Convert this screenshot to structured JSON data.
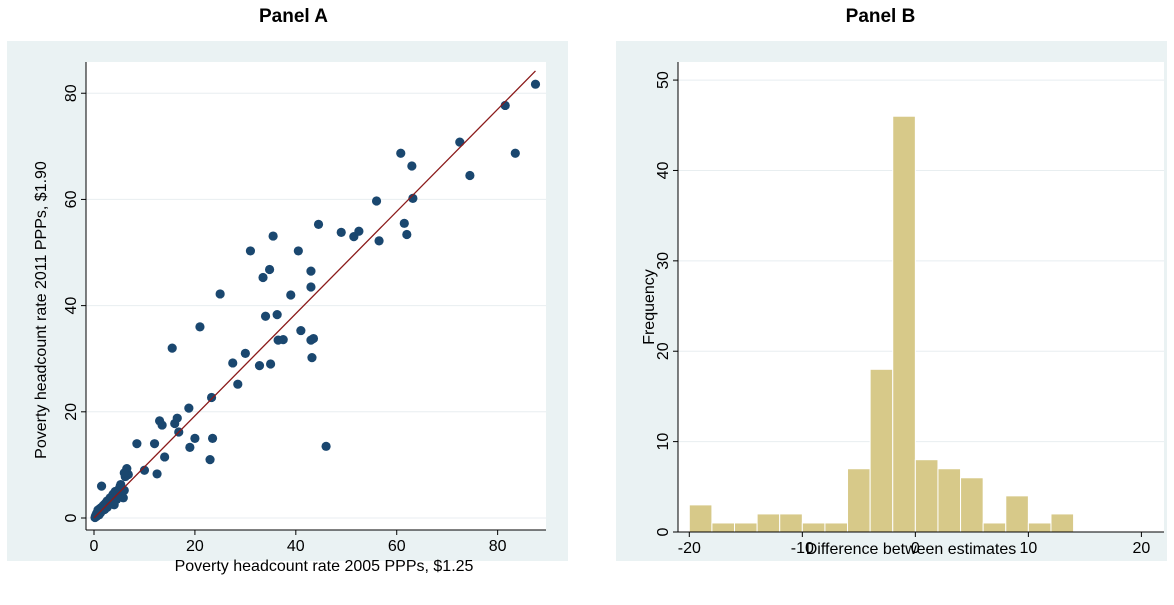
{
  "panels": {
    "a_title": "Panel A",
    "b_title": "Panel B"
  },
  "colors": {
    "background": "#eaf2f3",
    "point": "#1a476f",
    "fit_line": "#8b1a1a",
    "bar_fill": "#d7c989",
    "bar_edge": "#ffffff",
    "grid": "#ffffff"
  },
  "chart_data": [
    {
      "type": "scatter",
      "title": "Panel A",
      "xlabel": "Poverty headcount rate 2005 PPPs, $1.25",
      "ylabel": "Poverty headcount rate 2011 PPPs, $1.90",
      "xlim": [
        0,
        88
      ],
      "ylim": [
        0,
        84
      ],
      "xticks": [
        0,
        20,
        40,
        60,
        80
      ],
      "yticks": [
        0,
        20,
        40,
        60,
        80
      ],
      "grid": true,
      "fit_line": {
        "x": [
          0,
          87.5
        ],
        "y": [
          0,
          84.2
        ]
      },
      "points": [
        [
          0.2,
          0.1
        ],
        [
          0.3,
          0.4
        ],
        [
          0.5,
          0.8
        ],
        [
          0.6,
          1.0
        ],
        [
          0.8,
          1.5
        ],
        [
          1.0,
          1.2
        ],
        [
          1.2,
          1.8
        ],
        [
          1.5,
          2.0
        ],
        [
          1.8,
          2.3
        ],
        [
          2.0,
          2.5
        ],
        [
          2.3,
          2.8
        ],
        [
          2.6,
          3.2
        ],
        [
          3.0,
          3.0
        ],
        [
          3.2,
          3.8
        ],
        [
          3.5,
          4.0
        ],
        [
          3.8,
          4.5
        ],
        [
          4.0,
          2.5
        ],
        [
          4.2,
          5.0
        ],
        [
          4.5,
          3.5
        ],
        [
          4.8,
          4.8
        ],
        [
          5.0,
          5.5
        ],
        [
          5.3,
          6.3
        ],
        [
          5.5,
          4.2
        ],
        [
          5.8,
          3.8
        ],
        [
          6.0,
          5.2
        ],
        [
          6.2,
          7.8
        ],
        [
          6.5,
          9.3
        ],
        [
          6.8,
          8.2
        ],
        [
          0.5,
          0.3
        ],
        [
          1.0,
          0.6
        ],
        [
          1.3,
          1.0
        ],
        [
          0.8,
          1.4
        ],
        [
          1.5,
          6.0
        ],
        [
          2.1,
          1.6
        ],
        [
          2.6,
          2.0
        ],
        [
          3.3,
          2.6
        ],
        [
          4.0,
          3.3
        ],
        [
          4.6,
          4.0
        ],
        [
          5.2,
          6.0
        ],
        [
          6.0,
          8.5
        ],
        [
          8.5,
          14.0
        ],
        [
          10.0,
          9.0
        ],
        [
          12.0,
          14.0
        ],
        [
          12.5,
          8.3
        ],
        [
          13.0,
          18.3
        ],
        [
          13.5,
          17.5
        ],
        [
          14.0,
          11.5
        ],
        [
          15.5,
          32.0
        ],
        [
          16.0,
          17.8
        ],
        [
          16.5,
          18.8
        ],
        [
          16.8,
          16.2
        ],
        [
          18.8,
          20.7
        ],
        [
          19.0,
          13.3
        ],
        [
          20.0,
          15.0
        ],
        [
          21.0,
          36.0
        ],
        [
          23.0,
          11.0
        ],
        [
          23.3,
          22.7
        ],
        [
          23.5,
          15.0
        ],
        [
          25.0,
          42.2
        ],
        [
          27.5,
          29.2
        ],
        [
          28.5,
          25.2
        ],
        [
          30.0,
          31.0
        ],
        [
          31.0,
          50.3
        ],
        [
          32.8,
          28.7
        ],
        [
          33.5,
          45.3
        ],
        [
          34.0,
          38.0
        ],
        [
          34.8,
          46.8
        ],
        [
          35.0,
          29.0
        ],
        [
          35.5,
          53.1
        ],
        [
          36.3,
          38.3
        ],
        [
          36.5,
          33.5
        ],
        [
          37.5,
          33.6
        ],
        [
          39.0,
          42.0
        ],
        [
          40.5,
          50.3
        ],
        [
          41.0,
          35.3
        ],
        [
          43.0,
          43.5
        ],
        [
          43.0,
          46.5
        ],
        [
          43.0,
          33.5
        ],
        [
          43.2,
          30.2
        ],
        [
          43.5,
          33.8
        ],
        [
          44.5,
          55.3
        ],
        [
          46.0,
          13.5
        ],
        [
          49.0,
          53.8
        ],
        [
          51.5,
          53.0
        ],
        [
          52.5,
          54.0
        ],
        [
          56.0,
          59.7
        ],
        [
          56.5,
          52.2
        ],
        [
          60.8,
          68.7
        ],
        [
          61.5,
          55.5
        ],
        [
          62.0,
          53.4
        ],
        [
          63.0,
          66.3
        ],
        [
          63.2,
          60.2
        ],
        [
          72.5,
          70.8
        ],
        [
          74.5,
          64.5
        ],
        [
          81.5,
          77.7
        ],
        [
          83.5,
          68.7
        ],
        [
          87.5,
          81.7
        ]
      ]
    },
    {
      "type": "bar",
      "title": "Panel B",
      "xlabel": "Difference between estimates",
      "ylabel": "Frequency",
      "xlim": [
        -21,
        22
      ],
      "ylim": [
        0,
        52
      ],
      "xticks": [
        -20,
        -10,
        0,
        10,
        20
      ],
      "yticks": [
        0,
        10,
        20,
        30,
        40,
        50
      ],
      "grid": true,
      "bin_width": 2,
      "bin_starts": [
        -20,
        -18,
        -16,
        -14,
        -12,
        -10,
        -8,
        -6,
        -4,
        -2,
        0,
        2,
        4,
        6,
        8,
        10,
        12,
        14
      ],
      "values": [
        3,
        1,
        1,
        2,
        2,
        1,
        1,
        7,
        18,
        46,
        8,
        7,
        6,
        1,
        4,
        1,
        2,
        0
      ]
    }
  ]
}
